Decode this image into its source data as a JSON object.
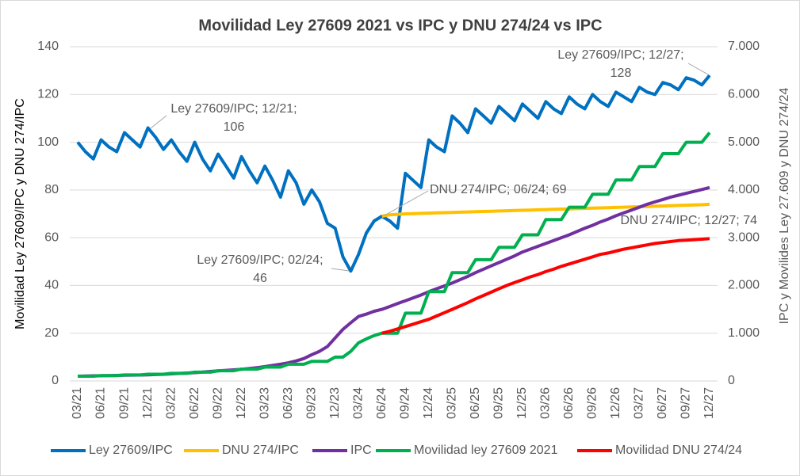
{
  "chart_data": {
    "type": "line",
    "title": "Movilidad Ley 27609 2021 vs IPC y DNU 274/24 vs IPC",
    "ylabel": "Movilidad Ley 27609/IPC y DNU 274/IPC",
    "y2label": "IPC y Movilides Ley 27.609 y DNU 274/24",
    "categories": [
      "03/21",
      null,
      null,
      "06/21",
      null,
      null,
      "09/21",
      null,
      null,
      "12/21",
      null,
      null,
      "03/22",
      null,
      null,
      "06/22",
      null,
      null,
      "09/22",
      null,
      null,
      "12/22",
      null,
      null,
      "03/23",
      null,
      null,
      "06/23",
      null,
      null,
      "09/23",
      null,
      null,
      "12/23",
      null,
      null,
      "03/24",
      null,
      null,
      "06/24",
      null,
      null,
      "09/24",
      null,
      null,
      "12/24",
      null,
      null,
      "03/25",
      null,
      null,
      "06/25",
      null,
      null,
      "09/25",
      null,
      null,
      "12/25",
      null,
      null,
      "03/26",
      null,
      null,
      "06/26",
      null,
      null,
      "09/26",
      null,
      null,
      "12/26",
      null,
      null,
      "03/27",
      null,
      null,
      "06/27",
      null,
      null,
      "09/27",
      null,
      null,
      "12/27"
    ],
    "series": [
      {
        "name": "Ley 27609/IPC",
        "color": "#0070C0",
        "axis": "y",
        "values": [
          100,
          96,
          93,
          101,
          98,
          96,
          104,
          101,
          98,
          106,
          102,
          97,
          101,
          96,
          92,
          100,
          93,
          88,
          95,
          90,
          85,
          94,
          88,
          83,
          90,
          84,
          77,
          88,
          83,
          74,
          80,
          75,
          66,
          64,
          52,
          46,
          53,
          62,
          67,
          69,
          67,
          64,
          87,
          84,
          81,
          101,
          98,
          96,
          111,
          108,
          104,
          114,
          111,
          108,
          115,
          112,
          109,
          116,
          113,
          110,
          117,
          114,
          112,
          119,
          116,
          114,
          120,
          117,
          115,
          121,
          119,
          117,
          123,
          121,
          120,
          125,
          124,
          122,
          127,
          126,
          124,
          128
        ]
      },
      {
        "name": "DNU 274/IPC",
        "color": "#FFC000",
        "axis": "y",
        "values": [
          null,
          null,
          null,
          null,
          null,
          null,
          null,
          null,
          null,
          null,
          null,
          null,
          null,
          null,
          null,
          null,
          null,
          null,
          null,
          null,
          null,
          null,
          null,
          null,
          null,
          null,
          null,
          null,
          null,
          null,
          null,
          null,
          null,
          null,
          null,
          null,
          null,
          null,
          null,
          69,
          69.6,
          69.8,
          70,
          70.1,
          70.2,
          70.3,
          70.4,
          70.5,
          70.6,
          70.7,
          70.8,
          70.9,
          71,
          71.1,
          71.2,
          71.3,
          71.4,
          71.5,
          71.6,
          71.7,
          71.8,
          71.9,
          72,
          72.1,
          72.2,
          72.3,
          72.4,
          72.5,
          72.6,
          72.7,
          72.8,
          72.9,
          73,
          73.1,
          73.2,
          73.3,
          73.4,
          73.5,
          73.6,
          73.7,
          73.8,
          74
        ]
      },
      {
        "name": "IPC",
        "color": "#7030A0",
        "axis": "y2",
        "values": [
          100,
          104,
          107,
          110,
          113,
          116,
          119,
          122,
          125,
          129,
          134,
          140,
          149,
          158,
          166,
          174,
          186,
          199,
          211,
          222,
          233,
          245,
          260,
          278,
          300,
          325,
          350,
          380,
          420,
          470,
          550,
          620,
          720,
          900,
          1080,
          1220,
          1350,
          1400,
          1460,
          1500,
          1560,
          1620,
          1680,
          1740,
          1800,
          1870,
          1930,
          1990,
          2050,
          2120,
          2190,
          2270,
          2340,
          2410,
          2480,
          2550,
          2620,
          2700,
          2760,
          2820,
          2880,
          2940,
          3000,
          3060,
          3130,
          3200,
          3260,
          3330,
          3390,
          3460,
          3520,
          3580,
          3640,
          3700,
          3750,
          3800,
          3850,
          3890,
          3930,
          3970,
          4010,
          4050
        ]
      },
      {
        "name": "Movilidad ley 27609 2021",
        "color": "#00B050",
        "axis": "y2",
        "values": [
          100,
          100,
          100,
          112,
          112,
          112,
          126,
          126,
          126,
          141,
          141,
          141,
          160,
          160,
          160,
          184,
          184,
          184,
          214,
          214,
          214,
          248,
          248,
          248,
          290,
          290,
          290,
          350,
          350,
          350,
          410,
          410,
          410,
          500,
          500,
          620,
          800,
          880,
          950,
          1000,
          1000,
          1000,
          1420,
          1420,
          1420,
          1870,
          1870,
          1870,
          2270,
          2270,
          2270,
          2540,
          2540,
          2540,
          2800,
          2800,
          2800,
          3060,
          3060,
          3060,
          3380,
          3380,
          3380,
          3640,
          3640,
          3640,
          3910,
          3910,
          3910,
          4210,
          4210,
          4210,
          4490,
          4490,
          4490,
          4760,
          4760,
          4760,
          5000,
          5000,
          5000,
          5200
        ]
      },
      {
        "name": "Movilidad DNU 274/24",
        "color": "#FF0000",
        "axis": "y2",
        "values": [
          null,
          null,
          null,
          null,
          null,
          null,
          null,
          null,
          null,
          null,
          null,
          null,
          null,
          null,
          null,
          null,
          null,
          null,
          null,
          null,
          null,
          null,
          null,
          null,
          null,
          null,
          null,
          null,
          null,
          null,
          null,
          null,
          null,
          null,
          null,
          null,
          null,
          null,
          null,
          1000,
          1040,
          1090,
          1140,
          1190,
          1240,
          1290,
          1360,
          1430,
          1500,
          1570,
          1640,
          1720,
          1790,
          1860,
          1930,
          2000,
          2060,
          2120,
          2180,
          2230,
          2290,
          2340,
          2400,
          2450,
          2500,
          2550,
          2600,
          2650,
          2680,
          2720,
          2760,
          2790,
          2820,
          2850,
          2880,
          2900,
          2920,
          2940,
          2950,
          2960,
          2970,
          2980
        ]
      }
    ],
    "ylim": [
      0,
      140
    ],
    "yticks": [
      0,
      20,
      40,
      60,
      80,
      100,
      120,
      140
    ],
    "y2lim": [
      0,
      7000
    ],
    "y2ticks": [
      {
        "value": 0,
        "label": "0"
      },
      {
        "value": 1000,
        "label": "1.000"
      },
      {
        "value": 2000,
        "label": "2.000"
      },
      {
        "value": 3000,
        "label": "3.000"
      },
      {
        "value": 4000,
        "label": "4.000"
      },
      {
        "value": 5000,
        "label": "5.000"
      },
      {
        "value": 6000,
        "label": "6.000"
      },
      {
        "value": 7000,
        "label": "7.000"
      }
    ],
    "grid": true,
    "legend": "bottom",
    "annotations": [
      {
        "lines": [
          "Ley 27609/IPC; 12/21;",
          "106"
        ]
      },
      {
        "lines": [
          "Ley 27609/IPC; 02/24;",
          "46"
        ]
      },
      {
        "lines": [
          "DNU 274/IPC; 06/24; 69"
        ]
      },
      {
        "lines": [
          "DNU 274/IPC; 12/27; 74"
        ]
      },
      {
        "lines": [
          "Ley 27609/IPC; 12/27;",
          "128"
        ]
      }
    ]
  }
}
